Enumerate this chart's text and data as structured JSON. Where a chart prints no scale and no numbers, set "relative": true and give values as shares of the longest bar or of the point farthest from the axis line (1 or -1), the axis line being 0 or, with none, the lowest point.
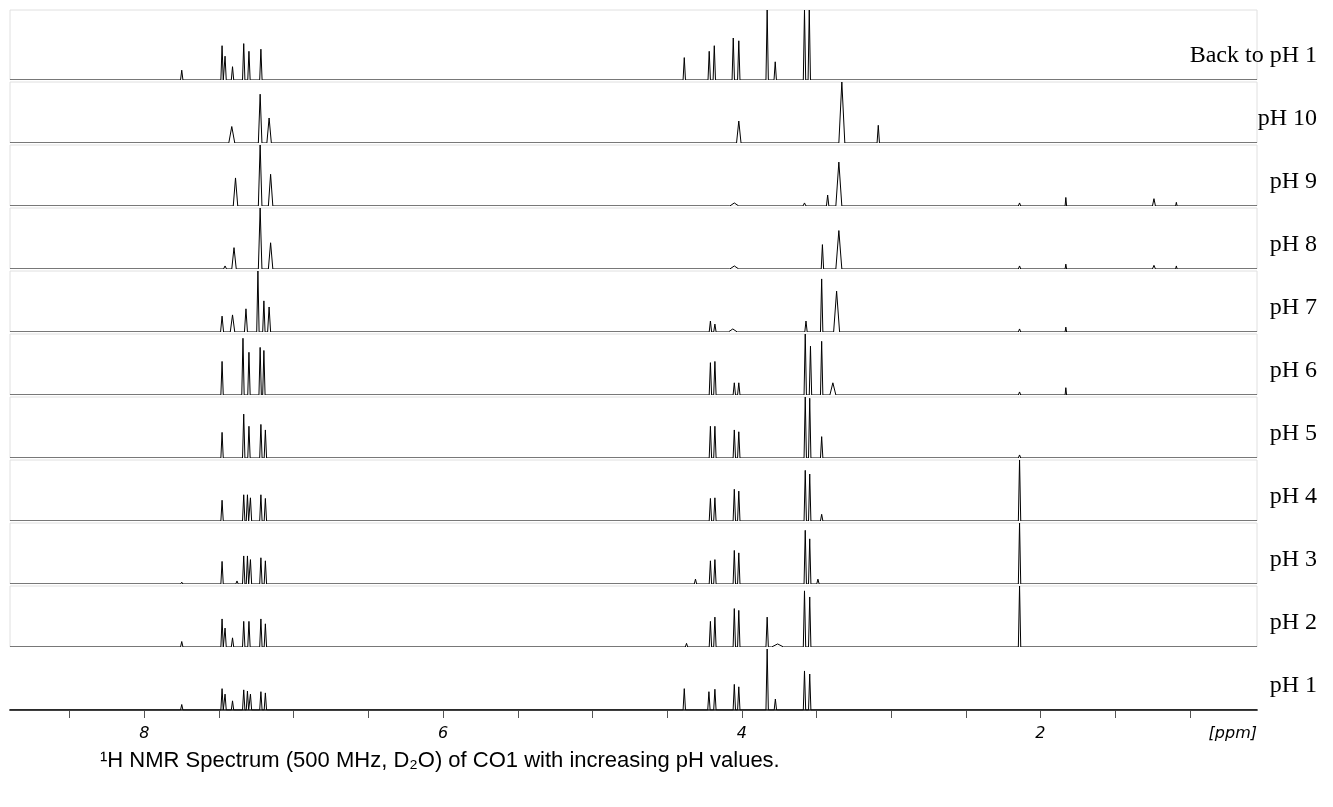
{
  "chart_data": [
    {
      "type": "line",
      "relative": true,
      "xlim": [
        8.9,
        0.55
      ],
      "tick_labels": false,
      "series": [
        {
          "name": "Back to pH 1",
          "color": "#000000",
          "x": [
            8.9,
            7.758,
            7.75,
            7.742,
            7.488,
            7.48,
            7.472,
            7.468,
            7.46,
            7.452,
            7.418,
            7.41,
            7.402,
            7.343,
            7.335,
            7.327,
            7.308,
            7.3,
            7.292,
            7.228,
            7.22,
            7.212,
            4.393,
            4.385,
            4.377,
            4.226,
            4.218,
            4.21,
            4.192,
            4.184,
            4.176,
            4.065,
            4.057,
            4.049,
            4.028,
            4.02,
            4.012,
            3.838,
            3.83,
            3.822,
            3.784,
            3.776,
            3.768,
            3.588,
            3.58,
            3.572,
            3.556,
            3.548,
            3.54,
            0.55
          ],
          "values": [
            0,
            0,
            0.14,
            0,
            0,
            0.49,
            0,
            0,
            0.34,
            0,
            0,
            0.19,
            0,
            0,
            0.52,
            0,
            0,
            0.41,
            0,
            0,
            0.44,
            0,
            0,
            0.32,
            0,
            0,
            0.41,
            0,
            0,
            0.49,
            0,
            0,
            0.6,
            0,
            0,
            0.56,
            0,
            0,
            1,
            0,
            0,
            0.26,
            0,
            0,
            1,
            0,
            0,
            1,
            0,
            0
          ]
        }
      ]
    },
    {
      "type": "line",
      "relative": true,
      "xlim": [
        8.9,
        0.55
      ],
      "tick_labels": false,
      "series": [
        {
          "name": "pH 10",
          "color": "#000000",
          "x": [
            8.9,
            7.435,
            7.415,
            7.395,
            7.237,
            7.225,
            7.213,
            7.18,
            7.165,
            7.15,
            4.035,
            4.02,
            4.005,
            3.35,
            3.33,
            3.31,
            3.094,
            3.086,
            3.078,
            0.55
          ],
          "values": [
            0,
            0,
            0.27,
            0,
            0,
            0.8,
            0,
            0,
            0.41,
            0,
            0,
            0.36,
            0,
            0,
            1,
            0,
            0,
            0.29,
            0,
            0
          ]
        }
      ]
    },
    {
      "type": "line",
      "relative": true,
      "xlim": [
        8.9,
        0.55
      ],
      "tick_labels": false,
      "series": [
        {
          "name": "pH 9",
          "color": "#000000",
          "x": [
            8.9,
            7.405,
            7.39,
            7.375,
            7.237,
            7.225,
            7.213,
            7.17,
            7.155,
            7.14,
            4.08,
            4.05,
            4.02,
            3.59,
            3.58,
            3.57,
            3.433,
            3.425,
            3.417,
            3.37,
            3.35,
            3.33,
            2.148,
            2.14,
            2.132,
            1.835,
            1.83,
            1.825,
            1.25,
            1.24,
            1.23,
            1.095,
            1.09,
            1.085,
            0.55
          ],
          "values": [
            0,
            0,
            0.46,
            0,
            0,
            1,
            0,
            0,
            0.52,
            0,
            0,
            0.05,
            0,
            0,
            0.05,
            0,
            0,
            0.18,
            0,
            0,
            0.72,
            0,
            0,
            0.05,
            0,
            0,
            0.14,
            0,
            0,
            0.12,
            0,
            0,
            0.06,
            0,
            0
          ]
        }
      ]
    },
    {
      "type": "line",
      "relative": true,
      "xlim": [
        8.9,
        0.55
      ],
      "tick_labels": false,
      "series": [
        {
          "name": "pH 8",
          "color": "#000000",
          "x": [
            8.9,
            7.47,
            7.46,
            7.45,
            7.415,
            7.4,
            7.385,
            7.237,
            7.225,
            7.213,
            7.17,
            7.155,
            7.14,
            4.08,
            4.05,
            4.02,
            3.468,
            3.46,
            3.452,
            3.37,
            3.35,
            3.33,
            2.148,
            2.14,
            2.132,
            1.835,
            1.83,
            1.825,
            1.25,
            1.24,
            1.23,
            1.095,
            1.09,
            1.085,
            0.55
          ],
          "values": [
            0,
            0,
            0.05,
            0,
            0,
            0.35,
            0,
            0,
            1,
            0,
            0,
            0.43,
            0,
            0,
            0.05,
            0,
            0,
            0.4,
            0,
            0,
            0.63,
            0,
            0,
            0.05,
            0,
            0,
            0.08,
            0,
            0,
            0.06,
            0,
            0,
            0.05,
            0,
            0
          ]
        }
      ]
    },
    {
      "type": "line",
      "relative": true,
      "xlim": [
        8.9,
        0.55
      ],
      "tick_labels": false,
      "series": [
        {
          "name": "pH 7",
          "color": "#000000",
          "x": [
            8.9,
            7.49,
            7.48,
            7.47,
            7.425,
            7.41,
            7.395,
            7.33,
            7.32,
            7.31,
            7.248,
            7.24,
            7.232,
            7.208,
            7.2,
            7.192,
            7.175,
            7.165,
            7.155,
            4.218,
            4.21,
            4.202,
            4.188,
            4.18,
            4.172,
            4.09,
            4.06,
            4.03,
            3.578,
            3.57,
            3.562,
            3.473,
            3.465,
            3.457,
            3.385,
            3.365,
            3.345,
            2.148,
            2.14,
            2.132,
            1.835,
            1.83,
            1.825,
            0.55
          ],
          "values": [
            0,
            0,
            0.26,
            0,
            0,
            0.28,
            0,
            0,
            0.38,
            0,
            0,
            1,
            0,
            0,
            0.51,
            0,
            0,
            0.41,
            0,
            0,
            0.18,
            0,
            0,
            0.13,
            0,
            0,
            0.05,
            0,
            0,
            0.18,
            0,
            0,
            0.87,
            0,
            0,
            0.67,
            0,
            0,
            0.05,
            0,
            0,
            0.08,
            0,
            0
          ]
        }
      ]
    },
    {
      "type": "line",
      "relative": true,
      "xlim": [
        8.9,
        0.55
      ],
      "tick_labels": false,
      "series": [
        {
          "name": "pH 6",
          "color": "#000000",
          "x": [
            8.9,
            7.488,
            7.48,
            7.472,
            7.348,
            7.34,
            7.332,
            7.308,
            7.3,
            7.292,
            7.233,
            7.225,
            7.217,
            7.208,
            7.2,
            7.192,
            4.218,
            4.21,
            4.202,
            4.188,
            4.18,
            4.172,
            4.058,
            4.05,
            4.042,
            4.028,
            4.02,
            4.012,
            3.583,
            3.575,
            3.567,
            3.548,
            3.54,
            3.532,
            3.473,
            3.465,
            3.457,
            3.41,
            3.39,
            3.37,
            2.148,
            2.14,
            2.132,
            1.835,
            1.83,
            1.825,
            0.55
          ],
          "values": [
            0,
            0,
            0.55,
            0,
            0,
            0.93,
            0,
            0,
            0.7,
            0,
            0,
            0.78,
            0,
            0,
            0.73,
            0,
            0,
            0.53,
            0,
            0,
            0.55,
            0,
            0,
            0.2,
            0,
            0,
            0.2,
            0,
            0,
            1,
            0,
            0,
            0.8,
            0,
            0,
            0.88,
            0,
            0,
            0.2,
            0,
            0,
            0.05,
            0,
            0,
            0.12,
            0,
            0
          ]
        }
      ]
    },
    {
      "type": "line",
      "relative": true,
      "xlim": [
        8.9,
        0.55
      ],
      "tick_labels": false,
      "series": [
        {
          "name": "pH 5",
          "color": "#000000",
          "x": [
            8.9,
            7.488,
            7.48,
            7.472,
            7.343,
            7.335,
            7.327,
            7.308,
            7.3,
            7.292,
            7.228,
            7.22,
            7.212,
            7.198,
            7.19,
            7.182,
            4.218,
            4.21,
            4.202,
            4.188,
            4.18,
            4.172,
            4.058,
            4.05,
            4.042,
            4.028,
            4.02,
            4.012,
            3.583,
            3.575,
            3.567,
            3.553,
            3.545,
            3.537,
            3.473,
            3.465,
            3.457,
            2.148,
            2.14,
            2.132,
            0.55
          ],
          "values": [
            0,
            0,
            0.42,
            0,
            0,
            0.72,
            0,
            0,
            0.52,
            0,
            0,
            0.55,
            0,
            0,
            0.46,
            0,
            0,
            0.52,
            0,
            0,
            0.52,
            0,
            0,
            0.46,
            0,
            0,
            0.43,
            0,
            0,
            1,
            0,
            0,
            0.98,
            0,
            0,
            0.35,
            0,
            0,
            0.05,
            0,
            0
          ]
        }
      ]
    },
    {
      "type": "line",
      "relative": true,
      "xlim": [
        8.9,
        0.55
      ],
      "tick_labels": false,
      "series": [
        {
          "name": "pH 4",
          "color": "#000000",
          "x": [
            8.9,
            7.488,
            7.48,
            7.472,
            7.343,
            7.335,
            7.327,
            7.318,
            7.31,
            7.302,
            7.298,
            7.29,
            7.282,
            7.228,
            7.22,
            7.212,
            7.198,
            7.19,
            7.182,
            4.218,
            4.21,
            4.202,
            4.188,
            4.18,
            4.172,
            4.058,
            4.05,
            4.042,
            4.028,
            4.02,
            4.012,
            3.583,
            3.575,
            3.567,
            3.553,
            3.545,
            3.537,
            3.473,
            3.465,
            3.457,
            2.148,
            2.14,
            2.132,
            0.55
          ],
          "values": [
            0,
            0,
            0.34,
            0,
            0,
            0.43,
            0,
            0,
            0.43,
            0,
            0,
            0.38,
            0,
            0,
            0.43,
            0,
            0,
            0.37,
            0,
            0,
            0.37,
            0,
            0,
            0.38,
            0,
            0,
            0.52,
            0,
            0,
            0.49,
            0,
            0,
            0.83,
            0,
            0,
            0.77,
            0,
            0,
            0.11,
            0,
            0,
            1,
            0,
            0
          ]
        }
      ]
    },
    {
      "type": "line",
      "relative": true,
      "xlim": [
        8.9,
        0.55
      ],
      "tick_labels": false,
      "series": [
        {
          "name": "pH 3",
          "color": "#000000",
          "x": [
            8.9,
            7.758,
            7.75,
            7.742,
            7.488,
            7.48,
            7.472,
            7.388,
            7.38,
            7.372,
            7.343,
            7.335,
            7.327,
            7.318,
            7.31,
            7.302,
            7.298,
            7.29,
            7.282,
            7.228,
            7.22,
            7.212,
            7.198,
            7.19,
            7.182,
            4.318,
            4.31,
            4.302,
            4.218,
            4.21,
            4.202,
            4.188,
            4.18,
            4.172,
            4.058,
            4.05,
            4.042,
            4.028,
            4.02,
            4.012,
            3.583,
            3.575,
            3.567,
            3.553,
            3.545,
            3.537,
            3.498,
            3.49,
            3.482,
            2.148,
            2.14,
            2.132,
            0.55
          ],
          "values": [
            0,
            0,
            0.03,
            0,
            0,
            0.37,
            0,
            0,
            0.05,
            0,
            0,
            0.46,
            0,
            0,
            0.46,
            0,
            0,
            0.4,
            0,
            0,
            0.43,
            0,
            0,
            0.38,
            0,
            0,
            0.08,
            0,
            0,
            0.38,
            0,
            0,
            0.4,
            0,
            0,
            0.55,
            0,
            0,
            0.51,
            0,
            0,
            0.88,
            0,
            0,
            0.74,
            0,
            0,
            0.08,
            0,
            0,
            1,
            0,
            0
          ]
        }
      ]
    },
    {
      "type": "line",
      "relative": true,
      "xlim": [
        8.9,
        0.55
      ],
      "tick_labels": false,
      "series": [
        {
          "name": "pH 2",
          "color": "#000000",
          "x": [
            8.9,
            7.758,
            7.75,
            7.742,
            7.488,
            7.48,
            7.472,
            7.468,
            7.46,
            7.452,
            7.418,
            7.41,
            7.402,
            7.343,
            7.335,
            7.327,
            7.308,
            7.3,
            7.292,
            7.228,
            7.22,
            7.212,
            7.198,
            7.19,
            7.182,
            4.378,
            4.37,
            4.362,
            4.218,
            4.21,
            4.202,
            4.188,
            4.18,
            4.172,
            4.058,
            4.05,
            4.042,
            4.028,
            4.02,
            4.012,
            3.838,
            3.83,
            3.822,
            3.8,
            3.76,
            3.72,
            3.588,
            3.58,
            3.572,
            3.553,
            3.545,
            3.537,
            2.148,
            2.14,
            2.132,
            0.55
          ],
          "values": [
            0,
            0,
            0.09,
            0,
            0,
            0.46,
            0,
            0,
            0.31,
            0,
            0,
            0.15,
            0,
            0,
            0.42,
            0,
            0,
            0.42,
            0,
            0,
            0.46,
            0,
            0,
            0.38,
            0,
            0,
            0.06,
            0,
            0,
            0.42,
            0,
            0,
            0.49,
            0,
            0,
            0.63,
            0,
            0,
            0.6,
            0,
            0,
            0.49,
            0,
            0,
            0.05,
            0,
            0,
            0.92,
            0,
            0,
            0.82,
            0,
            0,
            1,
            0,
            0
          ]
        }
      ]
    },
    {
      "type": "line",
      "relative": true,
      "xlim": [
        8.9,
        0.55
      ],
      "tick_labels": "x",
      "xlabel": "[ppm]",
      "xticks": [
        {
          "value": 8.5,
          "label": null
        },
        8,
        {
          "value": 7.5,
          "label": null
        },
        {
          "value": 7,
          "label": null
        },
        {
          "value": 6.5,
          "label": null
        },
        6,
        {
          "value": 5.5,
          "label": null
        },
        {
          "value": 5,
          "label": null
        },
        {
          "value": 4.5,
          "label": null
        },
        4,
        {
          "value": 3.5,
          "label": null
        },
        {
          "value": 3,
          "label": null
        },
        {
          "value": 2.5,
          "label": null
        },
        2,
        {
          "value": 1.5,
          "label": null
        },
        {
          "value": 1,
          "label": null
        }
      ],
      "annotations": [
        "¹H NMR Spectrum (500 MHz, D₂O) of CO1 with increasing pH values."
      ],
      "series": [
        {
          "name": "pH 1",
          "color": "#000000",
          "x": [
            8.9,
            7.758,
            7.75,
            7.742,
            7.488,
            7.48,
            7.472,
            7.468,
            7.46,
            7.452,
            7.418,
            7.41,
            7.402,
            7.343,
            7.335,
            7.327,
            7.318,
            7.31,
            7.302,
            7.298,
            7.29,
            7.282,
            7.228,
            7.22,
            7.212,
            7.198,
            7.19,
            7.182,
            4.393,
            4.385,
            4.377,
            4.228,
            4.22,
            4.212,
            4.188,
            4.18,
            4.172,
            4.058,
            4.05,
            4.042,
            4.028,
            4.02,
            4.012,
            3.838,
            3.83,
            3.822,
            3.783,
            3.775,
            3.767,
            3.588,
            3.58,
            3.572,
            3.553,
            3.545,
            3.537,
            0.55
          ],
          "values": [
            0,
            0,
            0.09,
            0,
            0,
            0.35,
            0,
            0,
            0.26,
            0,
            0,
            0.15,
            0,
            0,
            0.33,
            0,
            0,
            0.31,
            0,
            0,
            0.26,
            0,
            0,
            0.3,
            0,
            0,
            0.28,
            0,
            0,
            0.35,
            0,
            0,
            0.3,
            0,
            0,
            0.34,
            0,
            0,
            0.42,
            0,
            0,
            0.38,
            0,
            0,
            1,
            0,
            0,
            0.18,
            0,
            0,
            0.64,
            0,
            0,
            0.59,
            0,
            0
          ]
        }
      ]
    }
  ]
}
